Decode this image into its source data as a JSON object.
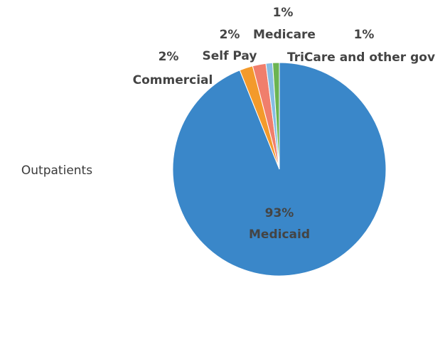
{
  "chart_data": {
    "type": "pie",
    "title": "Outpatients",
    "categories": [
      "Medicaid",
      "Commercial",
      "Self Pay",
      "Medicare",
      "TriCare and other gov"
    ],
    "values": [
      93,
      2,
      2,
      1,
      1
    ],
    "value_labels": [
      "93%",
      "2%",
      "2%",
      "1%",
      "1%"
    ],
    "colors": [
      "#3a87c9",
      "#f39a2b",
      "#f07e6c",
      "#86bde3",
      "#6bb452"
    ]
  }
}
